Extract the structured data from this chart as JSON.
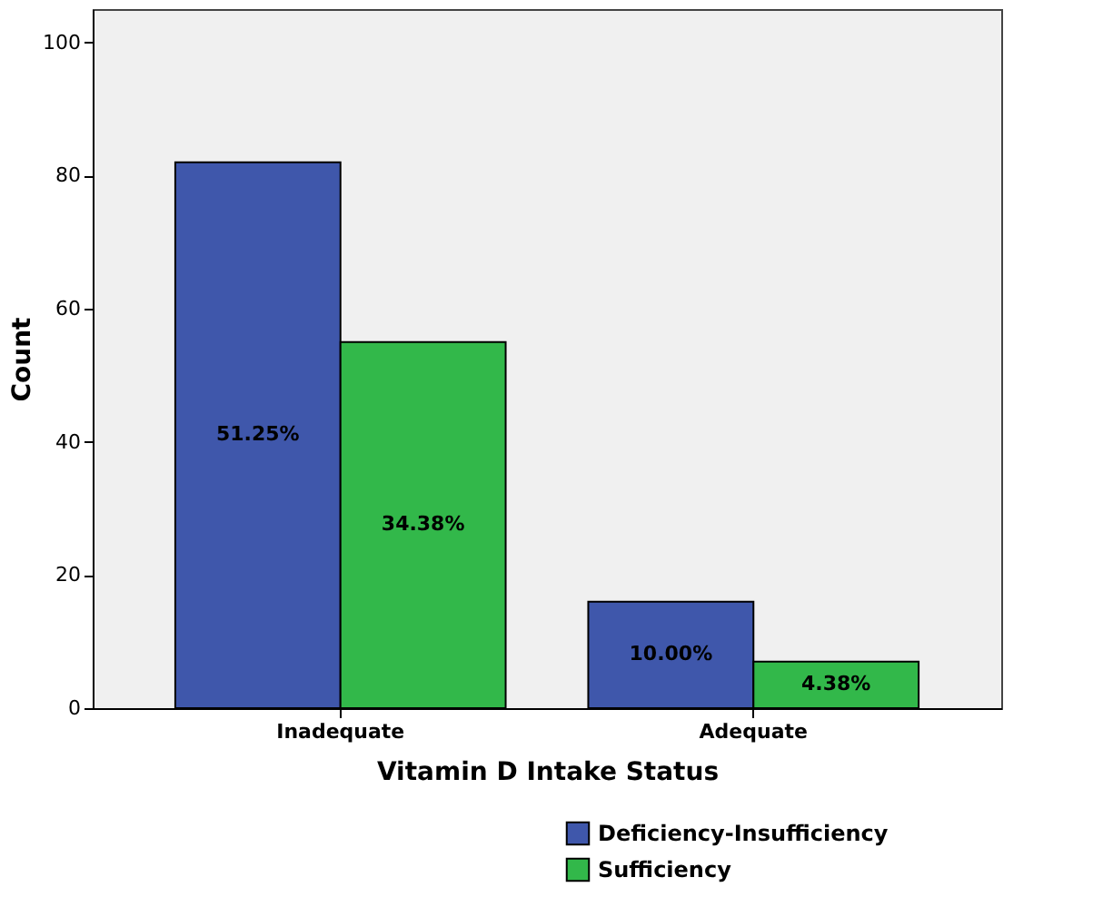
{
  "chart_data": {
    "type": "bar",
    "xlabel": "Vitamin D Intake Status",
    "ylabel": "Count",
    "categories": [
      "Inadequate",
      "Adequate"
    ],
    "series": [
      {
        "name": "Deficiency-Insufficiency",
        "color": "#3f57ab",
        "values": [
          82,
          16
        ]
      },
      {
        "name": "Sufficiency",
        "color": "#32b84a",
        "values": [
          55,
          7
        ]
      }
    ],
    "annotations": [
      {
        "text": "51.25%",
        "x": "Inadequate",
        "y": 41
      },
      {
        "text": "34.38%",
        "x": "Inadequate",
        "y": 27.5
      },
      {
        "text": "10.00%",
        "x": "Adequate",
        "y": 8
      },
      {
        "text": "4.38%",
        "x": "Adequate",
        "y": 3.5
      }
    ],
    "ylim": [
      0,
      105
    ],
    "yticks": [
      0,
      20,
      40,
      60,
      80,
      100
    ],
    "grid": false,
    "legend": "bottom right"
  }
}
